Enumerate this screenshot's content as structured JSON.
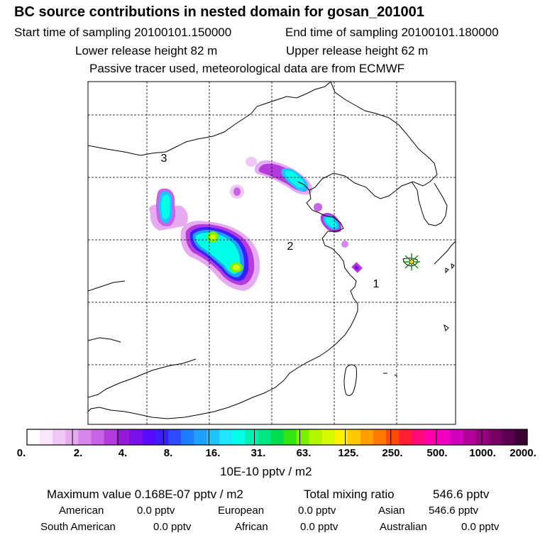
{
  "header": {
    "title": "BC  source contributions in nested domain for gosan_201001",
    "start_label": "Start time of sampling 20100101.150000",
    "end_label": "End time of sampling 20100101.180000",
    "lower_label": "Lower release height   82 m",
    "upper_label": "Upper release height   62 m",
    "tracer_note": "Passive tracer used, meteorological data are from ECMWF"
  },
  "map": {
    "region_labels": [
      "3",
      "2",
      "1"
    ],
    "receptor": "gosan"
  },
  "colorbar": {
    "labels": [
      "0.",
      "2.",
      "4.",
      "8.",
      "16.",
      "31.",
      "63.",
      "125.",
      "250.",
      "500.",
      "1000.",
      "2000."
    ],
    "unit": "10E-10 pptv / m2",
    "colors": [
      "#ffffff",
      "#fae6fa",
      "#f0c8f5",
      "#e6aaf0",
      "#d787eb",
      "#c864e6",
      "#b43cdc",
      "#9619d7",
      "#7a10e8",
      "#5a0aff",
      "#3c1eff",
      "#2d4bff",
      "#1e7dff",
      "#1ea0ff",
      "#1ec3ff",
      "#1ee6ff",
      "#00ffe6",
      "#00f0b4",
      "#00e682",
      "#00dc50",
      "#32e614",
      "#7df000",
      "#b4f500",
      "#d7fa00",
      "#fff000",
      "#ffc800",
      "#ffa000",
      "#ff7800",
      "#ff4b00",
      "#ff1e32",
      "#ff0a78",
      "#ff00aa",
      "#f000c3",
      "#d200b9",
      "#b4009b",
      "#96007d",
      "#780064",
      "#5a0050",
      "#3c0032"
    ]
  },
  "stats": {
    "max_label": "Maximum value  0.168E-07 pptv / m2",
    "total_label": "Total mixing ratio",
    "total_value": "546.6 pptv",
    "regions": [
      {
        "name": "American",
        "value": "0.0 pptv"
      },
      {
        "name": "European",
        "value": "0.0 pptv"
      },
      {
        "name": "Asian",
        "value": "546.6 pptv"
      },
      {
        "name": "South American",
        "value": "0.0 pptv"
      },
      {
        "name": "African",
        "value": "0.0 pptv"
      },
      {
        "name": "Australian",
        "value": "0.0 pptv"
      }
    ]
  }
}
